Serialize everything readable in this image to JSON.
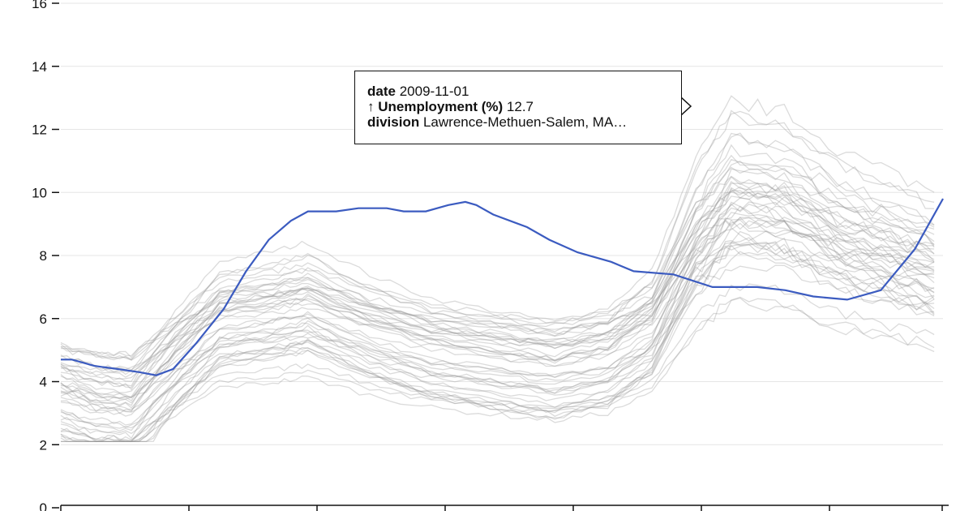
{
  "chart_data": {
    "type": "line",
    "title": "",
    "xlabel": "",
    "ylabel": "↑ Unemployment (%)",
    "ylim": [
      0,
      16
    ],
    "yticks": [
      0,
      2,
      4,
      6,
      8,
      10,
      12,
      14,
      16
    ],
    "x_range": [
      "2000-01-01",
      "2013-02-01"
    ],
    "grid": "horizontal",
    "highlight_color": "#3b5bc0",
    "background_line_color": "#9a9a9a",
    "highlighted_series": {
      "name": "Lawrence-Methuen-Salem, MA",
      "points": [
        [
          "2000-01-01",
          4.7
        ],
        [
          "2000-03-01",
          4.7
        ],
        [
          "2000-07-01",
          4.5
        ],
        [
          "2000-11-01",
          4.4
        ],
        [
          "2001-03-01",
          4.3
        ],
        [
          "2001-06-01",
          4.2
        ],
        [
          "2001-09-01",
          4.4
        ],
        [
          "2002-01-01",
          5.2
        ],
        [
          "2002-06-01",
          6.3
        ],
        [
          "2002-10-01",
          7.5
        ],
        [
          "2003-02-01",
          8.5
        ],
        [
          "2003-06-01",
          9.1
        ],
        [
          "2003-09-01",
          9.4
        ],
        [
          "2004-02-01",
          9.4
        ],
        [
          "2004-06-01",
          9.5
        ],
        [
          "2004-11-01",
          9.5
        ],
        [
          "2005-02-01",
          9.4
        ],
        [
          "2005-06-01",
          9.4
        ],
        [
          "2005-10-01",
          9.6
        ],
        [
          "2006-01-01",
          9.7
        ],
        [
          "2006-03-01",
          9.6
        ],
        [
          "2006-06-01",
          9.3
        ],
        [
          "2006-12-01",
          8.9
        ],
        [
          "2007-04-01",
          8.5
        ],
        [
          "2007-09-01",
          8.1
        ],
        [
          "2008-03-01",
          7.8
        ],
        [
          "2008-07-01",
          7.5
        ],
        [
          "2009-02-01",
          7.4
        ],
        [
          "2009-09-01",
          7.0
        ],
        [
          "2010-05-01",
          7.0
        ],
        [
          "2010-10-01",
          6.9
        ],
        [
          "2011-03-01",
          6.7
        ],
        [
          "2011-09-01",
          6.6
        ],
        [
          "2012-03-01",
          6.9
        ],
        [
          "2012-09-01",
          8.2
        ],
        [
          "2013-02-01",
          9.8
        ]
      ]
    },
    "background_series_note": "",
    "tooltip": {
      "date": "2009-11-01",
      "value": 12.7,
      "division": "Lawrence-Methuen-Salem, MA..."
    }
  },
  "tooltip": {
    "date_key": "date",
    "date_value": "2009-11-01",
    "value_key": "↑ Unemployment (%)",
    "value_value": "12.7",
    "division_key": "division",
    "division_value": "Lawrence-Methuen-Salem, MA…"
  }
}
